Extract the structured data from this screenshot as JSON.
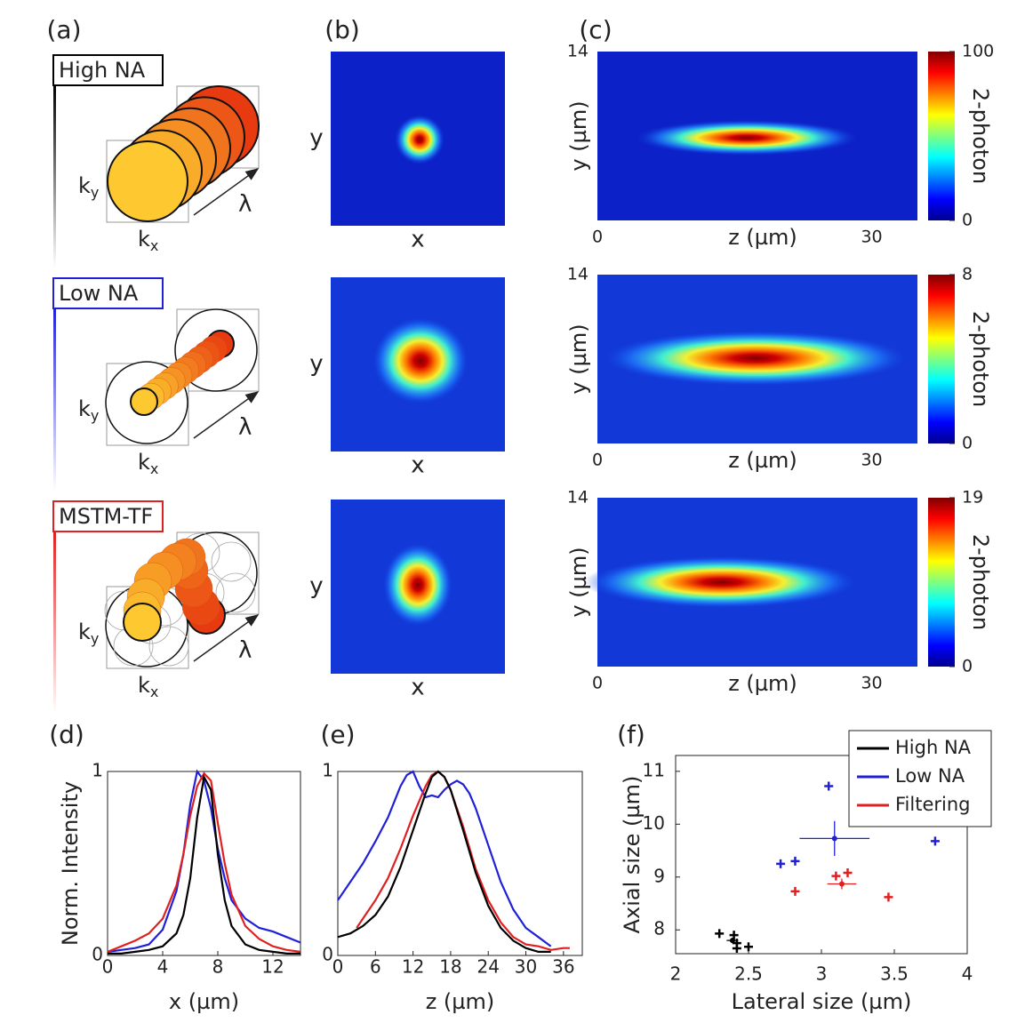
{
  "panel_labels": [
    "(a)",
    "(b)",
    "(c)",
    "(d)",
    "(e)",
    "(f)"
  ],
  "diagram": {
    "k": "k",
    "x_sub": "x",
    "y_sub": "y",
    "lambda": "λ"
  },
  "rows": [
    {
      "label": "High NA",
      "color": "#000000"
    },
    {
      "label": "Low NA",
      "color": "#2020d8"
    },
    {
      "label": "MSTM-TF",
      "color": "#e02020"
    }
  ],
  "images": {
    "x_label": "x",
    "y_label": "y"
  },
  "chart_data": [
    {
      "type": "heatmap",
      "xlabel": "z (µm)",
      "ylabel": "y (µm)",
      "xlim": [
        0,
        35
      ],
      "xticks": [
        0,
        30
      ],
      "ylim": [
        0,
        14
      ],
      "yticks": [
        14
      ],
      "colorbar": {
        "lim": [
          0,
          100
        ],
        "ticks": [
          0,
          100
        ],
        "label": "2-photon"
      }
    },
    {
      "type": "heatmap",
      "xlabel": "z (µm)",
      "ylabel": "y (µm)",
      "xlim": [
        0,
        35
      ],
      "xticks": [
        0,
        30
      ],
      "ylim": [
        0,
        14
      ],
      "yticks": [
        14
      ],
      "colorbar": {
        "lim": [
          0,
          8
        ],
        "ticks": [
          0,
          8
        ],
        "label": "2-photon"
      }
    },
    {
      "type": "heatmap",
      "xlabel": "z (µm)",
      "ylabel": "y (µm)",
      "xlim": [
        0,
        35
      ],
      "xticks": [
        0,
        30
      ],
      "ylim": [
        0,
        14
      ],
      "yticks": [
        14
      ],
      "colorbar": {
        "lim": [
          0,
          19
        ],
        "ticks": [
          0,
          19
        ],
        "label": "2-photon"
      }
    },
    {
      "type": "line",
      "xlabel": "x (µm)",
      "ylabel": "Norm. Intensity",
      "xlim": [
        0,
        14
      ],
      "xticks": [
        0,
        4,
        8,
        12
      ],
      "ylim": [
        0,
        1
      ],
      "yticks": [
        0,
        1
      ],
      "series": [
        {
          "color": "#2020d8",
          "x": [
            0,
            1,
            2,
            3,
            4,
            5,
            5.5,
            6,
            6.5,
            7,
            7.5,
            8,
            8.5,
            9,
            10,
            11,
            12,
            13,
            14
          ],
          "values": [
            0.02,
            0.03,
            0.04,
            0.06,
            0.14,
            0.35,
            0.55,
            0.82,
            1.0,
            0.95,
            0.8,
            0.58,
            0.42,
            0.3,
            0.2,
            0.15,
            0.13,
            0.1,
            0.07
          ]
        },
        {
          "color": "#e02020",
          "x": [
            0,
            1,
            2,
            3,
            4,
            5,
            5.5,
            6,
            6.5,
            7,
            7.5,
            8,
            8.5,
            9,
            10,
            11,
            12,
            13,
            14
          ],
          "values": [
            0.02,
            0.05,
            0.08,
            0.12,
            0.2,
            0.38,
            0.55,
            0.76,
            0.92,
            0.99,
            0.95,
            0.72,
            0.5,
            0.33,
            0.16,
            0.09,
            0.05,
            0.03,
            0.02
          ]
        },
        {
          "color": "#000000",
          "x": [
            0,
            1,
            2,
            3,
            4,
            5,
            5.5,
            6,
            6.5,
            7,
            7.5,
            8,
            8.5,
            9,
            10,
            11,
            12,
            13,
            14
          ],
          "values": [
            0.01,
            0.01,
            0.02,
            0.03,
            0.05,
            0.12,
            0.22,
            0.42,
            0.75,
            0.97,
            0.9,
            0.55,
            0.3,
            0.16,
            0.06,
            0.03,
            0.02,
            0.01,
            0.01
          ]
        }
      ]
    },
    {
      "type": "line",
      "xlabel": "z (µm)",
      "xlim": [
        0,
        39
      ],
      "xticks": [
        0,
        6,
        12,
        18,
        24,
        30,
        36
      ],
      "ylim": [
        0,
        1
      ],
      "yticks": [
        0,
        1
      ],
      "series": [
        {
          "color": "#2020d8",
          "x": [
            0,
            2,
            4,
            6,
            8,
            10,
            11,
            12,
            13,
            14,
            15,
            16,
            17,
            18,
            19,
            20,
            21,
            22,
            24,
            26,
            28,
            30,
            32,
            34
          ],
          "values": [
            0.3,
            0.4,
            0.5,
            0.62,
            0.75,
            0.92,
            0.98,
            1.0,
            0.92,
            0.86,
            0.87,
            0.86,
            0.9,
            0.93,
            0.95,
            0.93,
            0.88,
            0.8,
            0.6,
            0.4,
            0.25,
            0.15,
            0.1,
            0.05
          ]
        },
        {
          "color": "#e02020",
          "x": [
            3,
            4,
            6,
            8,
            10,
            12,
            14,
            15,
            16,
            17,
            18,
            20,
            22,
            24,
            26,
            28,
            30,
            32,
            34,
            36,
            37
          ],
          "values": [
            0.15,
            0.2,
            0.3,
            0.42,
            0.58,
            0.76,
            0.92,
            0.98,
            1.0,
            0.97,
            0.9,
            0.7,
            0.47,
            0.3,
            0.18,
            0.1,
            0.06,
            0.05,
            0.03,
            0.04,
            0.04
          ]
        },
        {
          "color": "#000000",
          "x": [
            0,
            2,
            4,
            6,
            8,
            10,
            12,
            14,
            15,
            16,
            17,
            18,
            20,
            22,
            24,
            26,
            28,
            30,
            32,
            34
          ],
          "values": [
            0.1,
            0.12,
            0.16,
            0.22,
            0.32,
            0.48,
            0.68,
            0.88,
            0.97,
            1.0,
            0.97,
            0.9,
            0.68,
            0.45,
            0.27,
            0.15,
            0.08,
            0.04,
            0.02,
            0.02
          ]
        }
      ]
    },
    {
      "type": "scatter",
      "xlabel": "Lateral size (µm)",
      "ylabel": "Axial size (µm)",
      "xlim": [
        2,
        4
      ],
      "xticks": [
        2,
        2.5,
        3,
        3.5,
        4
      ],
      "ylim": [
        7.55,
        11.3
      ],
      "yticks": [
        8,
        9,
        10,
        11
      ],
      "legend": "upper right",
      "series": [
        {
          "name": "High NA",
          "color": "#000000",
          "x": [
            2.3,
            2.4,
            2.42,
            2.42,
            2.5
          ],
          "values": [
            7.93,
            7.9,
            7.75,
            7.65,
            7.68
          ],
          "mean": {
            "x": 2.39,
            "y": 7.8,
            "xerr": 0.04,
            "yerr": 0.05
          }
        },
        {
          "name": "Low NA",
          "color": "#2020d8",
          "x": [
            2.72,
            2.82,
            3.05,
            3.78
          ],
          "values": [
            9.25,
            9.3,
            10.72,
            9.68
          ],
          "mean": {
            "x": 3.09,
            "y": 9.73,
            "xerr": 0.24,
            "yerr": 0.33
          }
        },
        {
          "name": "Filtering",
          "color": "#e02020",
          "x": [
            2.82,
            3.1,
            3.18,
            3.46
          ],
          "values": [
            8.73,
            9.02,
            9.08,
            8.62
          ],
          "mean": {
            "x": 3.14,
            "y": 8.87,
            "xerr": 0.1,
            "yerr": 0.1
          }
        }
      ]
    }
  ]
}
